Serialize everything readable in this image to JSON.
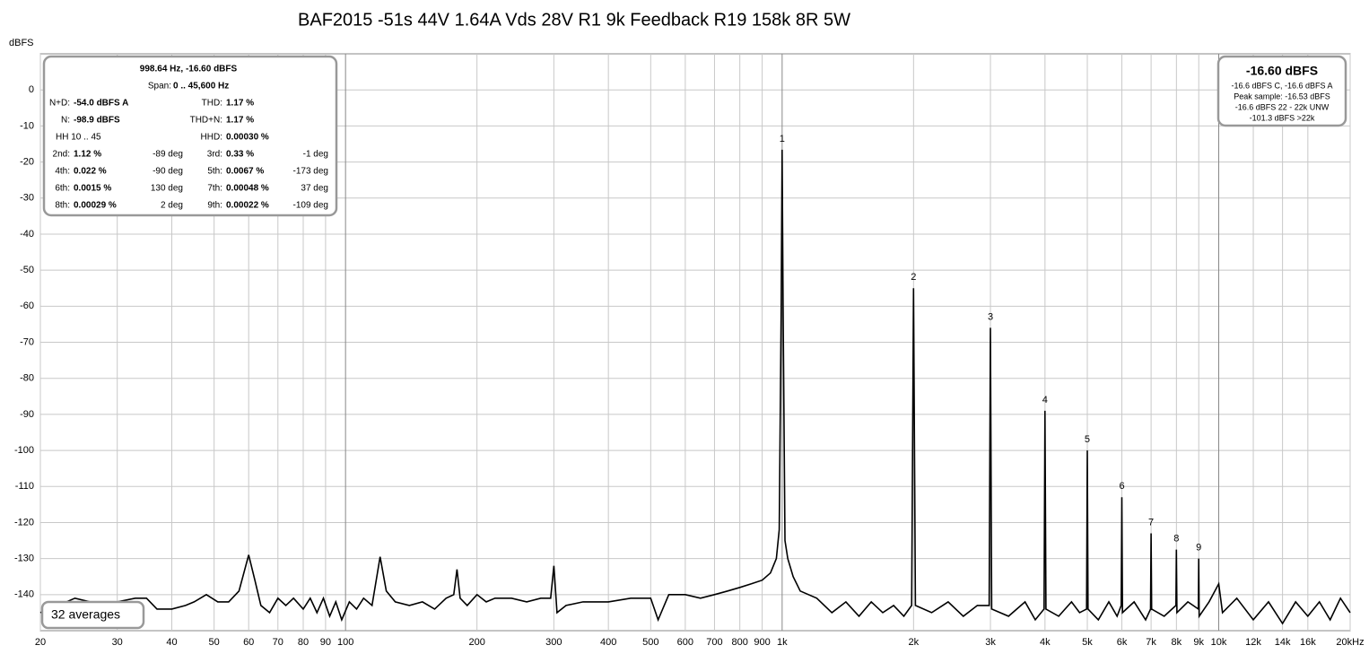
{
  "chart_data": {
    "type": "line",
    "title": "BAF2015 -51s 44V 1.64A Vds 28V R1 9k Feedback R19 158k 8R 5W",
    "y_label": "dBFS",
    "x_scale": "log",
    "grid": true,
    "color": "#000000",
    "xlim": [
      20,
      20000
    ],
    "ylim": [
      -150,
      10
    ],
    "yticks": [
      0,
      -10,
      -20,
      -30,
      -40,
      -50,
      -60,
      -70,
      -80,
      -90,
      -100,
      -110,
      -120,
      -130,
      -140
    ],
    "xticks": [
      20,
      30,
      40,
      50,
      60,
      70,
      80,
      90,
      100,
      200,
      300,
      400,
      500,
      600,
      700,
      800,
      900,
      {
        "value": 1000,
        "label": "1k"
      },
      {
        "value": 2000,
        "label": "2k"
      },
      {
        "value": 3000,
        "label": "3k"
      },
      {
        "value": 4000,
        "label": "4k"
      },
      {
        "value": 5000,
        "label": "5k"
      },
      {
        "value": 6000,
        "label": "6k"
      },
      {
        "value": 7000,
        "label": "7k"
      },
      {
        "value": 8000,
        "label": "8k"
      },
      {
        "value": 9000,
        "label": "9k"
      },
      {
        "value": 10000,
        "label": "10k"
      },
      {
        "value": 12000,
        "label": "12k"
      },
      {
        "value": 14000,
        "label": "14k"
      },
      {
        "value": 16000,
        "label": "16k"
      },
      {
        "value": 20000,
        "label": "20kHz"
      }
    ],
    "x": [
      20,
      22,
      24,
      26,
      28,
      30,
      33,
      35,
      37,
      40,
      43,
      45,
      48,
      51,
      54,
      57,
      60,
      62,
      64,
      67,
      70,
      73,
      76,
      80,
      83,
      86,
      89,
      92,
      95,
      98,
      102,
      106,
      110,
      115,
      120,
      124,
      130,
      140,
      150,
      160,
      170,
      177,
      180,
      183,
      190,
      200,
      210,
      220,
      240,
      260,
      280,
      295,
      300,
      305,
      320,
      350,
      400,
      450,
      500,
      520,
      550,
      600,
      650,
      700,
      750,
      800,
      850,
      900,
      940,
      970,
      985,
      995,
      1000,
      1005,
      1015,
      1030,
      1060,
      1100,
      1200,
      1300,
      1400,
      1500,
      1600,
      1700,
      1800,
      1900,
      1980,
      2000,
      2020,
      2200,
      2400,
      2600,
      2800,
      2980,
      3000,
      3020,
      3300,
      3600,
      3800,
      3980,
      4000,
      4020,
      4300,
      4600,
      4800,
      4980,
      5000,
      5020,
      5300,
      5600,
      5850,
      5980,
      6000,
      6020,
      6400,
      6800,
      6980,
      7000,
      7020,
      7500,
      7980,
      8000,
      8020,
      8500,
      8980,
      9000,
      9020,
      9500,
      10000,
      10200,
      11000,
      12000,
      13000,
      14000,
      15000,
      16000,
      17000,
      18000,
      19000,
      20000
    ],
    "values": [
      -145,
      -143,
      -141,
      -142,
      -143,
      -142,
      -141,
      -141,
      -144,
      -144,
      -143,
      -142,
      -140,
      -142,
      -142,
      -139,
      -129,
      -136,
      -143,
      -145,
      -141,
      -143,
      -141,
      -144,
      -141,
      -145,
      -141,
      -146,
      -142,
      -147,
      -142,
      -144,
      -141,
      -143,
      -129.5,
      -139,
      -142,
      -143,
      -142,
      -144,
      -141,
      -140,
      -133,
      -141,
      -143,
      -140,
      -142,
      -141,
      -141,
      -142,
      -141,
      -141,
      -132,
      -145,
      -143,
      -142,
      -142,
      -141,
      -141,
      -147,
      -140,
      -140,
      -141,
      -140,
      -139,
      -138,
      -137,
      -136,
      -134,
      -130,
      -122,
      -60,
      -16.6,
      -60,
      -125,
      -130,
      -135,
      -139,
      -141,
      -145,
      -142,
      -146,
      -142,
      -145,
      -143,
      -146,
      -143,
      -55,
      -143,
      -145,
      -142,
      -146,
      -143,
      -143,
      -66,
      -144,
      -146,
      -142,
      -147,
      -144,
      -89,
      -144,
      -146,
      -142,
      -145,
      -144,
      -100,
      -144,
      -147,
      -142,
      -146,
      -143,
      -113,
      -145,
      -142,
      -147,
      -144,
      -123,
      -144,
      -146,
      -143,
      -127.5,
      -145,
      -142,
      -144,
      -130,
      -146,
      -142,
      -137,
      -145,
      -141,
      -147,
      -142,
      -148,
      -142,
      -146,
      -142,
      -147,
      -141,
      -145
    ],
    "harmonics": {
      "labels": [
        "1",
        "2",
        "3",
        "4",
        "5",
        "6",
        "7",
        "8",
        "9"
      ],
      "x": [
        1000,
        2000,
        3000,
        4000,
        5000,
        6000,
        7000,
        8000,
        9000
      ],
      "values": [
        -16.6,
        -55,
        -66,
        -89,
        -100,
        -113,
        -123,
        -127.5,
        -130
      ]
    },
    "info_box": {
      "title": "998.64 Hz, -16.60 dBFS",
      "span_label": "Span:",
      "span": "0 .. 45,600 Hz",
      "rows": [
        [
          "N+D:",
          "-54.0 dBFS A",
          "THD:",
          "1.17 %"
        ],
        [
          "N:",
          "-98.9 dBFS",
          "THD+N:",
          "1.17 %"
        ]
      ],
      "hh": [
        "HH 10 .. 45",
        "HHD:",
        "0.00030 %"
      ],
      "harmonic_rows": [
        [
          "2nd:",
          "1.12 %",
          "-89 deg",
          "3rd:",
          "0.33 %",
          "-1 deg"
        ],
        [
          "4th:",
          "0.022 %",
          "-90 deg",
          "5th:",
          "0.0067 %",
          "-173 deg"
        ],
        [
          "6th:",
          "0.0015 %",
          "130 deg",
          "7th:",
          "0.00048 %",
          "37 deg"
        ],
        [
          "8th:",
          "0.00029 %",
          "2 deg",
          "9th:",
          "0.00022 %",
          "-109 deg"
        ]
      ]
    },
    "level_box": {
      "title": "-16.60 dBFS",
      "lines": [
        "-16.6 dBFS C, -16.6 dBFS A",
        "Peak sample: -16.53 dBFS",
        "-16.6 dBFS 22 - 22k UNW",
        "-101.3 dBFS >22k"
      ]
    },
    "averages": "32 averages"
  }
}
